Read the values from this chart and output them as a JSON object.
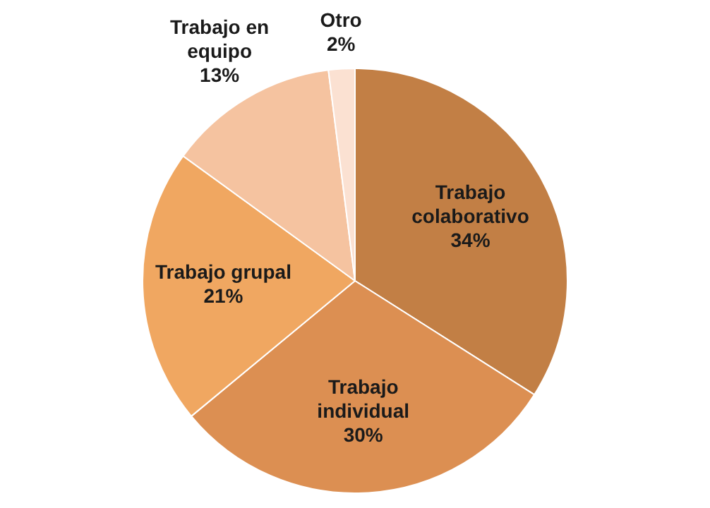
{
  "chart_data": {
    "type": "pie",
    "categories": [
      "Trabajo colaborativo",
      "Trabajo individual",
      "Trabajo grupal",
      "Trabajo en equipo",
      "Otro"
    ],
    "values": [
      34,
      30,
      21,
      13,
      2
    ],
    "value_labels": [
      "34%",
      "30%",
      "21%",
      "13%",
      "2%"
    ],
    "colors": [
      "#c27f45",
      "#dc8f52",
      "#f0a761",
      "#f5c3a0",
      "#fbe1d2"
    ],
    "legend": false
  }
}
